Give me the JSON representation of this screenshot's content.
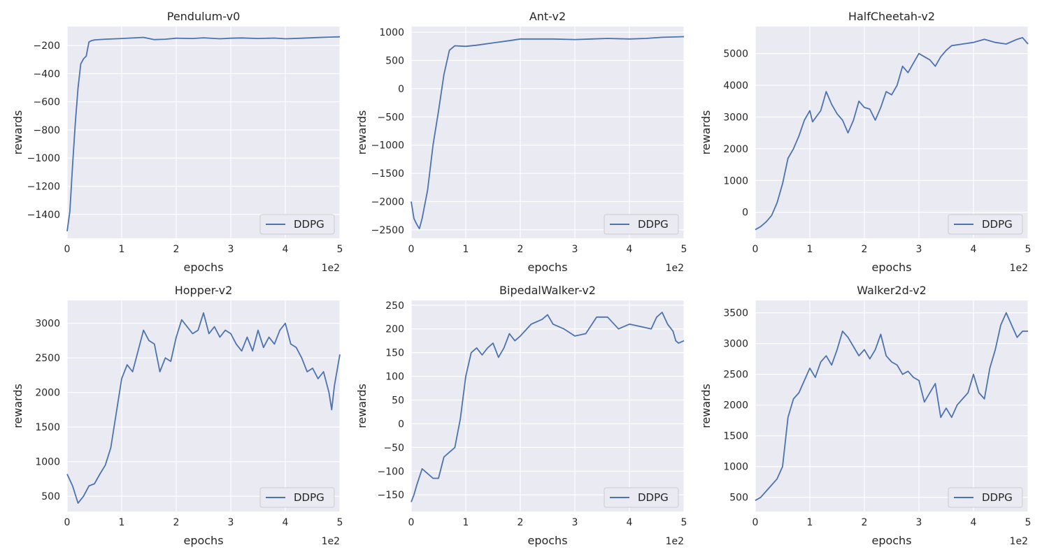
{
  "colors": {
    "series": "#4c72b0",
    "plot_background": "#eaeaf2",
    "grid": "#ffffff",
    "text": "#262626"
  },
  "chart_data": [
    {
      "type": "line",
      "title": "Pendulum-v0",
      "xlabel": "epochs",
      "ylabel": "rewards",
      "x_offset_label": "1e2",
      "xlim": [
        0,
        5
      ],
      "ylim": [
        -1570,
        -65
      ],
      "xticks": [
        0,
        1,
        2,
        3,
        4,
        5
      ],
      "yticks": [
        -1400,
        -1200,
        -1000,
        -800,
        -600,
        -400,
        -200
      ],
      "yticklabels": [
        "−1400",
        "−1200",
        "−1000",
        "−800",
        "−600",
        "−400",
        "−200"
      ],
      "grid": true,
      "legend_position": "bottom-right",
      "series": [
        {
          "name": "DDPG",
          "x": [
            0,
            0.05,
            0.1,
            0.15,
            0.2,
            0.25,
            0.3,
            0.35,
            0.4,
            0.45,
            0.5,
            0.7,
            1.0,
            1.4,
            1.6,
            1.8,
            2.0,
            2.3,
            2.5,
            2.8,
            3.0,
            3.2,
            3.5,
            3.8,
            4.0,
            4.3,
            4.6,
            4.8,
            5.0
          ],
          "y": [
            -1520,
            -1380,
            -1050,
            -750,
            -500,
            -330,
            -295,
            -275,
            -175,
            -165,
            -160,
            -155,
            -150,
            -142,
            -158,
            -155,
            -148,
            -150,
            -145,
            -152,
            -148,
            -146,
            -150,
            -147,
            -152,
            -148,
            -143,
            -140,
            -138
          ]
        }
      ]
    },
    {
      "type": "line",
      "title": "Ant-v2",
      "xlabel": "epochs",
      "ylabel": "rewards",
      "x_offset_label": "1e2",
      "xlim": [
        0,
        5
      ],
      "ylim": [
        -2650,
        1100
      ],
      "xticks": [
        0,
        1,
        2,
        3,
        4,
        5
      ],
      "yticks": [
        -2500,
        -2000,
        -1500,
        -1000,
        -500,
        0,
        500,
        1000
      ],
      "yticklabels": [
        "−2500",
        "−2000",
        "−1500",
        "−1000",
        "−500",
        "0",
        "500",
        "1000"
      ],
      "grid": true,
      "legend_position": "bottom-right",
      "series": [
        {
          "name": "DDPG",
          "x": [
            0,
            0.05,
            0.1,
            0.15,
            0.2,
            0.3,
            0.4,
            0.5,
            0.6,
            0.7,
            0.8,
            1.0,
            1.2,
            1.5,
            1.8,
            2.0,
            2.3,
            2.6,
            3.0,
            3.3,
            3.6,
            4.0,
            4.3,
            4.6,
            5.0
          ],
          "y": [
            -2000,
            -2300,
            -2400,
            -2480,
            -2300,
            -1800,
            -1000,
            -400,
            250,
            680,
            760,
            750,
            770,
            810,
            850,
            880,
            880,
            880,
            870,
            880,
            890,
            880,
            890,
            910,
            920
          ]
        }
      ]
    },
    {
      "type": "line",
      "title": "HalfCheetah-v2",
      "xlabel": "epochs",
      "ylabel": "rewards",
      "x_offset_label": "1e2",
      "xlim": [
        0,
        5
      ],
      "ylim": [
        -820,
        5850
      ],
      "xticks": [
        0,
        1,
        2,
        3,
        4,
        5
      ],
      "yticks": [
        0,
        1000,
        2000,
        3000,
        4000,
        5000
      ],
      "yticklabels": [
        "0",
        "1000",
        "2000",
        "3000",
        "4000",
        "5000"
      ],
      "grid": true,
      "legend_position": "bottom-right",
      "series": [
        {
          "name": "DDPG",
          "x": [
            0,
            0.1,
            0.2,
            0.3,
            0.4,
            0.5,
            0.6,
            0.7,
            0.8,
            0.9,
            1.0,
            1.05,
            1.2,
            1.3,
            1.4,
            1.5,
            1.6,
            1.7,
            1.8,
            1.9,
            2.0,
            2.1,
            2.2,
            2.3,
            2.4,
            2.5,
            2.6,
            2.7,
            2.8,
            2.9,
            3.0,
            3.1,
            3.2,
            3.3,
            3.4,
            3.5,
            3.6,
            3.8,
            4.0,
            4.2,
            4.4,
            4.6,
            4.8,
            4.9,
            5.0
          ],
          "y": [
            -550,
            -450,
            -300,
            -100,
            300,
            900,
            1700,
            2000,
            2400,
            2900,
            3200,
            2850,
            3200,
            3800,
            3400,
            3100,
            2900,
            2500,
            2900,
            3500,
            3300,
            3250,
            2900,
            3300,
            3800,
            3700,
            4000,
            4600,
            4400,
            4700,
            5000,
            4900,
            4800,
            4600,
            4900,
            5100,
            5250,
            5300,
            5350,
            5450,
            5350,
            5300,
            5450,
            5500,
            5300
          ]
        }
      ]
    },
    {
      "type": "line",
      "title": "Hopper-v2",
      "xlabel": "epochs",
      "ylabel": "rewards",
      "x_offset_label": "1e2",
      "xlim": [
        0,
        5
      ],
      "ylim": [
        280,
        3330
      ],
      "xticks": [
        0,
        1,
        2,
        3,
        4,
        5
      ],
      "yticks": [
        500,
        1000,
        1500,
        2000,
        2500,
        3000
      ],
      "yticklabels": [
        "500",
        "1000",
        "1500",
        "2000",
        "2500",
        "3000"
      ],
      "grid": true,
      "legend_position": "bottom-right",
      "series": [
        {
          "name": "DDPG",
          "x": [
            0,
            0.1,
            0.2,
            0.3,
            0.4,
            0.5,
            0.6,
            0.7,
            0.8,
            0.9,
            1.0,
            1.1,
            1.2,
            1.3,
            1.4,
            1.5,
            1.6,
            1.7,
            1.8,
            1.9,
            2.0,
            2.1,
            2.2,
            2.3,
            2.4,
            2.5,
            2.6,
            2.7,
            2.8,
            2.9,
            3.0,
            3.1,
            3.2,
            3.3,
            3.4,
            3.5,
            3.6,
            3.7,
            3.8,
            3.9,
            4.0,
            4.1,
            4.2,
            4.3,
            4.4,
            4.5,
            4.6,
            4.7,
            4.8,
            4.85,
            4.9,
            5.0
          ],
          "y": [
            820,
            650,
            400,
            500,
            650,
            680,
            820,
            950,
            1200,
            1700,
            2200,
            2400,
            2300,
            2600,
            2900,
            2750,
            2700,
            2300,
            2500,
            2450,
            2800,
            3050,
            2950,
            2850,
            2900,
            3150,
            2850,
            2950,
            2800,
            2900,
            2850,
            2700,
            2600,
            2800,
            2600,
            2900,
            2650,
            2800,
            2700,
            2900,
            3000,
            2700,
            2650,
            2500,
            2300,
            2350,
            2200,
            2300,
            2000,
            1750,
            2100,
            2550
          ]
        }
      ]
    },
    {
      "type": "line",
      "title": "BipedalWalker-v2",
      "xlabel": "epochs",
      "ylabel": "rewards",
      "x_offset_label": "1e2",
      "xlim": [
        0,
        5
      ],
      "ylim": [
        -185,
        260
      ],
      "xticks": [
        0,
        1,
        2,
        3,
        4,
        5
      ],
      "yticks": [
        -150,
        -100,
        -50,
        0,
        50,
        100,
        150,
        200,
        250
      ],
      "yticklabels": [
        "−150",
        "−100",
        "−50",
        "0",
        "50",
        "100",
        "150",
        "200",
        "250"
      ],
      "grid": true,
      "legend_position": "bottom-right",
      "series": [
        {
          "name": "DDPG",
          "x": [
            0,
            0.05,
            0.1,
            0.2,
            0.3,
            0.4,
            0.5,
            0.6,
            0.7,
            0.8,
            0.9,
            1.0,
            1.1,
            1.2,
            1.3,
            1.4,
            1.5,
            1.6,
            1.7,
            1.8,
            1.9,
            2.0,
            2.2,
            2.4,
            2.5,
            2.6,
            2.8,
            3.0,
            3.2,
            3.4,
            3.6,
            3.8,
            4.0,
            4.2,
            4.4,
            4.5,
            4.6,
            4.7,
            4.8,
            4.85,
            4.9,
            5.0
          ],
          "y": [
            -165,
            -150,
            -130,
            -95,
            -105,
            -115,
            -115,
            -70,
            -60,
            -50,
            10,
            100,
            150,
            160,
            145,
            160,
            170,
            140,
            160,
            190,
            175,
            185,
            210,
            220,
            230,
            210,
            200,
            185,
            190,
            225,
            225,
            200,
            210,
            205,
            200,
            225,
            235,
            210,
            195,
            175,
            170,
            175
          ]
        }
      ]
    },
    {
      "type": "line",
      "title": "Walker2d-v2",
      "xlabel": "epochs",
      "ylabel": "rewards",
      "x_offset_label": "1e2",
      "xlim": [
        0,
        5
      ],
      "ylim": [
        270,
        3700
      ],
      "xticks": [
        0,
        1,
        2,
        3,
        4,
        5
      ],
      "yticks": [
        500,
        1000,
        1500,
        2000,
        2500,
        3000,
        3500
      ],
      "yticklabels": [
        "500",
        "1000",
        "1500",
        "2000",
        "2500",
        "3000",
        "3500"
      ],
      "grid": true,
      "legend_position": "bottom-right",
      "series": [
        {
          "name": "DDPG",
          "x": [
            0,
            0.1,
            0.2,
            0.3,
            0.4,
            0.5,
            0.6,
            0.7,
            0.8,
            0.9,
            1.0,
            1.1,
            1.2,
            1.3,
            1.4,
            1.5,
            1.6,
            1.7,
            1.8,
            1.9,
            2.0,
            2.1,
            2.2,
            2.3,
            2.4,
            2.5,
            2.6,
            2.7,
            2.8,
            2.9,
            3.0,
            3.1,
            3.2,
            3.3,
            3.4,
            3.5,
            3.6,
            3.7,
            3.8,
            3.9,
            4.0,
            4.1,
            4.2,
            4.3,
            4.4,
            4.5,
            4.6,
            4.7,
            4.8,
            4.9,
            5.0
          ],
          "y": [
            450,
            500,
            600,
            700,
            800,
            1000,
            1800,
            2100,
            2200,
            2400,
            2600,
            2450,
            2700,
            2800,
            2650,
            2900,
            3200,
            3100,
            2950,
            2800,
            2900,
            2750,
            2900,
            3150,
            2800,
            2700,
            2650,
            2500,
            2550,
            2450,
            2400,
            2050,
            2200,
            2350,
            1800,
            1950,
            1800,
            2000,
            2100,
            2200,
            2500,
            2200,
            2100,
            2600,
            2900,
            3300,
            3500,
            3300,
            3100,
            3200,
            3200
          ]
        }
      ]
    }
  ]
}
